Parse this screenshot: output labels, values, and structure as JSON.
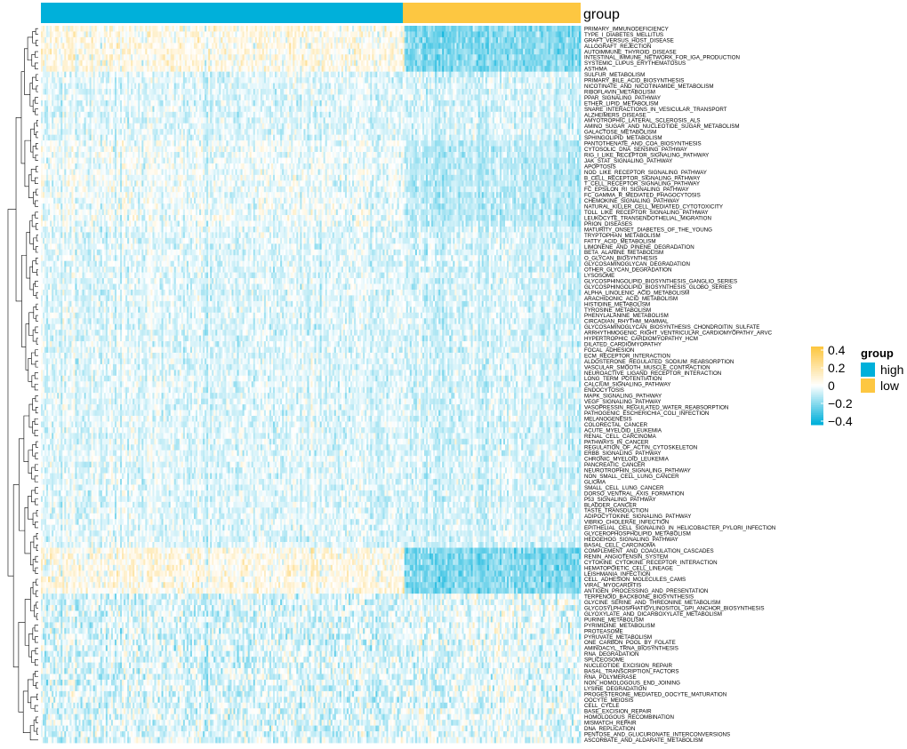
{
  "chart_data": {
    "type": "heatmap",
    "annotation_title": "group",
    "groups": [
      {
        "name": "high",
        "color": "#00B0DA",
        "fraction": 0.67
      },
      {
        "name": "low",
        "color": "#FDC741",
        "fraction": 0.33
      }
    ],
    "color_scale": {
      "ticks": [
        "0.4",
        "0.2",
        "0",
        "−0.2",
        "−0.4"
      ],
      "min": -0.45,
      "max": 0.45,
      "low_color": "#00B0DA",
      "mid_color": "#FFFFFF",
      "high_color": "#FDC741"
    },
    "legend_title": "group",
    "row_labels": [
      "PRIMARY_IMMUNODEFICIENCY",
      "TYPE_I_DIABETES_MELLITUS",
      "GRAFT_VERSUS_HOST_DISEASE",
      "ALLOGRAFT_REJECTION",
      "AUTOIMMUNE_THYROID_DISEASE",
      "INTESTINAL_IMMUNE_NETWORK_FOR_IGA_PRODUCTION",
      "SYSTEMIC_LUPUS_ERYTHEMATOSUS",
      "ASTHMA",
      "SULFUR_METABOLISM",
      "PRIMARY_BILE_ACID_BIOSYNTHESIS",
      "NICOTINATE_AND_NICOTINAMIDE_METABOLISM",
      "RIBOFLAVIN_METABOLISM",
      "PPAR_SIGNALING_PATHWAY",
      "ETHER_LIPID_METABOLISM",
      "SNARE_INTERACTIONS_IN_VESICULAR_TRANSPORT",
      "ALZHEIMERS_DISEASE",
      "AMYOTROPHIC_LATERAL_SCLEROSIS_ALS",
      "AMINO_SUGAR_AND_NUCLEOTIDE_SUGAR_METABOLISM",
      "GALACTOSE_METABOLISM",
      "SPHINGOLIPID_METABOLISM",
      "PANTOTHENATE_AND_COA_BIOSYNTHESIS",
      "CYTOSOLIC_DNA_SENSING_PATHWAY",
      "RIG_I_LIKE_RECEPTOR_SIGNALING_PATHWAY",
      "JAK_STAT_SIGNALING_PATHWAY",
      "APOPTOSIS",
      "NOD_LIKE_RECEPTOR_SIGNALING_PATHWAY",
      "B_CELL_RECEPTOR_SIGNALING_PATHWAY",
      "T_CELL_RECEPTOR_SIGNALING_PATHWAY",
      "FC_EPSILON_RI_SIGNALING_PATHWAY",
      "FC_GAMMA_R_MEDIATED_PHAGOCYTOSIS",
      "CHEMOKINE_SIGNALING_PATHWAY",
      "NATURAL_KILLER_CELL_MEDIATED_CYTOTOXICITY",
      "TOLL_LIKE_RECEPTOR_SIGNALING_PATHWAY",
      "LEUKOCYTE_TRANSENDOTHELIAL_MIGRATION",
      "PRION_DISEASES",
      "MATURITY_ONSET_DIABETES_OF_THE_YOUNG",
      "TRYPTOPHAN_METABOLISM",
      "FATTY_ACID_METABOLISM",
      "LIMONENE_AND_PINENE_DEGRADATION",
      "BETA_ALANINE_METABOLISM",
      "O_GLYCAN_BIOSYNTHESIS",
      "GLYCOSAMINOGLYCAN_DEGRADATION",
      "OTHER_GLYCAN_DEGRADATION",
      "LYSOSOME",
      "GLYCOSPHINGOLIPID_BIOSYNTHESIS_GANGLIO_SERIES",
      "GLYCOSPHINGOLIPID_BIOSYNTHESIS_GLOBO_SERIES",
      "ALPHA_LINOLENIC_ACID_METABOLISM",
      "ARACHIDONIC_ACID_METABOLISM",
      "HISTIDINE_METABOLISM",
      "TYROSINE_METABOLISM",
      "PHENYLALANINE_METABOLISM",
      "CIRCADIAN_RHYTHM_MAMMAL",
      "GLYCOSAMINOGLYCAN_BIOSYNTHESIS_CHONDROITIN_SULFATE",
      "ARRHYTHMOGENIC_RIGHT_VENTRICULAR_CARDIOMYOPATHY_ARVC",
      "HYPERTROPHIC_CARDIOMYOPATHY_HCM",
      "DILATED_CARDIOMYOPATHY",
      "FOCAL_ADHESION",
      "ECM_RECEPTOR_INTERACTION",
      "ALDOSTERONE_REGULATED_SODIUM_REABSORPTION",
      "VASCULAR_SMOOTH_MUSCLE_CONTRACTION",
      "NEUROACTIVE_LIGAND_RECEPTOR_INTERACTION",
      "LONG_TERM_POTENTIATION",
      "CALCIUM_SIGNALING_PATHWAY",
      "ENDOCYTOSIS",
      "MAPK_SIGNALING_PATHWAY",
      "VEGF_SIGNALING_PATHWAY",
      "VASOPRESSIN_REGULATED_WATER_REABSORPTION",
      "PATHOGENIC_ESCHERICHIA_COLI_INFECTION",
      "MELANOGENESIS",
      "COLORECTAL_CANCER",
      "ACUTE_MYELOID_LEUKEMIA",
      "RENAL_CELL_CARCINOMA",
      "PATHWAYS_IN_CANCER",
      "REGULATION_OF_ACTIN_CYTOSKELETON",
      "ERBB_SIGNALING_PATHWAY",
      "CHRONIC_MYELOID_LEUKEMIA",
      "PANCREATIC_CANCER",
      "NEUROTROPHIN_SIGNALING_PATHWAY",
      "NON_SMALL_CELL_LUNG_CANCER",
      "GLIOMA",
      "SMALL_CELL_LUNG_CANCER",
      "DORSO_VENTRAL_AXIS_FORMATION",
      "P53_SIGNALING_PATHWAY",
      "BLADDER_CANCER",
      "TASTE_TRANSDUCTION",
      "ADIPOCYTOKINE_SIGNALING_PATHWAY",
      "VIBRIO_CHOLERAE_INFECTION",
      "EPITHELIAL_CELL_SIGNALING_IN_HELICOBACTER_PYLORI_INFECTION",
      "GLYCEROPHOSPHOLIPID_METABOLISM",
      "HEDGEHOG_SIGNALING_PATHWAY",
      "BASAL_CELL_CARCINOMA",
      "COMPLEMENT_AND_COAGULATION_CASCADES",
      "RENIN_ANGIOTENSIN_SYSTEM",
      "CYTOKINE_CYTOKINE_RECEPTOR_INTERACTION",
      "HEMATOPOIETIC_CELL_LINEAGE",
      "LEISHMANIA_INFECTION",
      "CELL_ADHESION_MOLECULES_CAMS",
      "VIRAL_MYOCARDITIS",
      "ANTIGEN_PROCESSING_AND_PRESENTATION",
      "TERPENOID_BACKBONE_BIOSYNTHESIS",
      "GLYCINE_SERINE_AND_THREONINE_METABOLISM",
      "GLYCOSYLPHOSPHATIDYLINOSITOL_GPI_ANCHOR_BIOSYNTHESIS",
      "GLYOXYLATE_AND_DICARBOXYLATE_METABOLISM",
      "PURINE_METABOLISM",
      "PYRIMIDINE_METABOLISM",
      "PROTEASOME",
      "PYRUVATE_METABOLISM",
      "ONE_CARBON_POOL_BY_FOLATE",
      "AMINOACYL_TRNA_BIOSYNTHESIS",
      "RNA_DEGRADATION",
      "SPLICEOSOME",
      "NUCLEOTIDE_EXCISION_REPAIR",
      "BASAL_TRANSCRIPTION_FACTORS",
      "RNA_POLYMERASE",
      "NON_HOMOLOGOUS_END_JOINING",
      "LYSINE_DEGRADATION",
      "PROGESTERONE_MEDIATED_OOCYTE_MATURATION",
      "OOCYTE_MEIOSIS",
      "CELL_CYCLE",
      "BASE_EXCISION_REPAIR",
      "HOMOLOGOUS_RECOMBINATION",
      "MISMATCH_REPAIR",
      "DNA_REPLICATION",
      "PENTOSE_AND_GLUCURONATE_INTERCONVERSIONS",
      "ASCORBATE_AND_ALDARATE_METABOLISM"
    ],
    "row_profiles": [
      "immune",
      "immune",
      "immune",
      "immune",
      "immune",
      "immune",
      "immune",
      "immune",
      "mixed",
      "mixed",
      "mixed",
      "mixed",
      "mixed",
      "mixed",
      "mixed",
      "mixed",
      "mixed",
      "mixed",
      "mixed",
      "mixed",
      "mild",
      "mild",
      "mild",
      "mild",
      "mild",
      "mild",
      "mild",
      "mild",
      "mild",
      "mild",
      "mild",
      "mild",
      "mild",
      "mild",
      "mild",
      "mixed",
      "mixed",
      "mixed",
      "mixed",
      "mixed",
      "mixed",
      "mixed",
      "mixed",
      "mixed",
      "mixed",
      "mixed",
      "mixed",
      "mixed",
      "mixed",
      "mixed",
      "mixed",
      "mixed",
      "mixed",
      "mixed",
      "mixed",
      "mixed",
      "mixed",
      "mixed",
      "mixed",
      "mixed",
      "mixed",
      "mixed",
      "mixed",
      "mixed",
      "mixed",
      "mixed",
      "mixed",
      "mixed",
      "mixed",
      "mixed",
      "mixed",
      "mixed",
      "mixed",
      "mixed",
      "mixed",
      "mixed",
      "mixed",
      "mixed",
      "mixed",
      "mixed",
      "mixed",
      "mixed",
      "mixed",
      "mixed",
      "mixed",
      "mixed",
      "mixed",
      "mixed",
      "mixed",
      "mixed",
      "mixed",
      "immune",
      "immune",
      "immune",
      "immune",
      "immune",
      "immune",
      "immune",
      "immune",
      "neg",
      "neg",
      "neg",
      "neg",
      "neg",
      "neg",
      "neg",
      "neg",
      "neg",
      "neg",
      "neg",
      "neg",
      "neg",
      "neg",
      "neg",
      "neg",
      "neg",
      "neg",
      "neg",
      "neg",
      "neg",
      "neg",
      "neg",
      "neg",
      "neg",
      "neg",
      "neg"
    ]
  }
}
